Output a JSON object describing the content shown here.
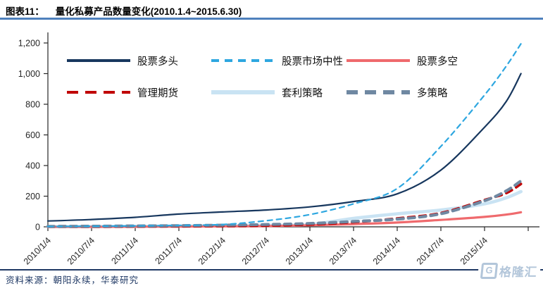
{
  "header": {
    "figure_label": "图表11：",
    "title": "量化私募产品数量变化(2010.1.4~2015.6.30)"
  },
  "footer": {
    "source": "资料来源：朝阳永续，华泰研究",
    "watermark": "格隆汇"
  },
  "colors": {
    "title_rule": "#4F81BD",
    "footer_rule": "#1F3864",
    "axis": "#262626",
    "watermark": "#B3C6DA"
  },
  "chart_data": {
    "type": "line",
    "title": "量化私募产品数量变化(2010.1.4~2015.6.30)",
    "xlabel": "",
    "ylabel": "",
    "ylim": [
      0,
      1200
    ],
    "grid": false,
    "legend_position": "top-left-inside",
    "y_ticks": [
      {
        "label": "0",
        "value": 0
      },
      {
        "label": "200",
        "value": 200
      },
      {
        "label": "400",
        "value": 400
      },
      {
        "label": "600",
        "value": 600
      },
      {
        "label": "800",
        "value": 800
      },
      {
        "label": "1,000",
        "value": 1000
      },
      {
        "label": "1,200",
        "value": 1200
      }
    ],
    "x_tick_labels": [
      "2010/1/4",
      "2010/7/4",
      "2011/1/4",
      "2011/7/4",
      "2012/1/4",
      "2012/7/4",
      "2013/1/4",
      "2013/7/4",
      "2014/1/4",
      "2014/7/4",
      "2015/1/4"
    ],
    "x_dates": [
      "2010/1/4",
      "2010/7/4",
      "2011/1/4",
      "2011/7/4",
      "2012/1/4",
      "2012/7/4",
      "2013/1/4",
      "2013/7/4",
      "2014/1/4",
      "2014/7/4",
      "2015/1/4",
      "2015/4/1",
      "2015/6/30"
    ],
    "x_months": [
      0,
      6,
      12,
      18,
      24,
      30,
      36,
      42,
      48,
      54,
      60,
      63,
      65
    ],
    "series": [
      {
        "id": "equity-long",
        "name": "股票多头",
        "color": "#17375E",
        "style": "solid",
        "width": 2.2,
        "values": [
          38,
          48,
          62,
          83,
          97,
          110,
          130,
          165,
          215,
          370,
          650,
          820,
          1000
        ]
      },
      {
        "id": "equity-market-neutral",
        "name": "股票市场中性",
        "color": "#2EA7E0",
        "style": "dashed",
        "width": 2.2,
        "values": [
          2,
          4,
          6,
          9,
          15,
          40,
          80,
          150,
          250,
          525,
          860,
          1050,
          1195
        ]
      },
      {
        "id": "equity-long-short",
        "name": "股票多空",
        "color": "#EF6A6D",
        "style": "solid",
        "width": 3.2,
        "values": [
          0,
          0,
          1,
          2,
          3,
          5,
          10,
          18,
          28,
          45,
          65,
          80,
          95
        ]
      },
      {
        "id": "managed-futures",
        "name": "管理期货",
        "color": "#C00000",
        "style": "dashed",
        "width": 3.6,
        "values": [
          1,
          1,
          2,
          3,
          5,
          8,
          15,
          30,
          55,
          90,
          175,
          220,
          280
        ]
      },
      {
        "id": "arbitrage",
        "name": "套利策略",
        "color": "#C9E3F3",
        "style": "solid",
        "width": 4.6,
        "values": [
          1,
          2,
          3,
          5,
          8,
          10,
          15,
          55,
          85,
          110,
          150,
          190,
          230
        ]
      },
      {
        "id": "multi-strategy",
        "name": "多策略",
        "color": "#6F88A2",
        "style": "dashed",
        "width": 4.2,
        "values": [
          3,
          4,
          6,
          8,
          11,
          15,
          22,
          35,
          50,
          85,
          170,
          235,
          300
        ]
      }
    ]
  }
}
